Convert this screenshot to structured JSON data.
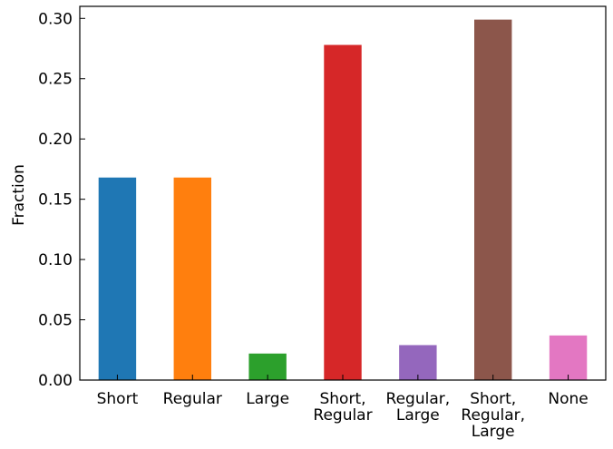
{
  "chart_data": {
    "type": "bar",
    "title": "",
    "xlabel": "",
    "ylabel": "Fraction",
    "ylim": [
      0.0,
      0.31
    ],
    "yticks": [
      "0.00",
      "0.05",
      "0.10",
      "0.15",
      "0.20",
      "0.25",
      "0.30"
    ],
    "grid": false,
    "categories": [
      [
        "Short"
      ],
      [
        "Regular"
      ],
      [
        "Large"
      ],
      [
        "Short,",
        "Regular"
      ],
      [
        "Regular,",
        "Large"
      ],
      [
        "Short,",
        "Regular,",
        "Large"
      ],
      [
        "None"
      ]
    ],
    "values": [
      0.168,
      0.168,
      0.022,
      0.278,
      0.029,
      0.299,
      0.037
    ],
    "colors": [
      "#1f77b4",
      "#ff7f0e",
      "#2ca02c",
      "#d62728",
      "#9467bd",
      "#8c564b",
      "#e377c2"
    ]
  }
}
